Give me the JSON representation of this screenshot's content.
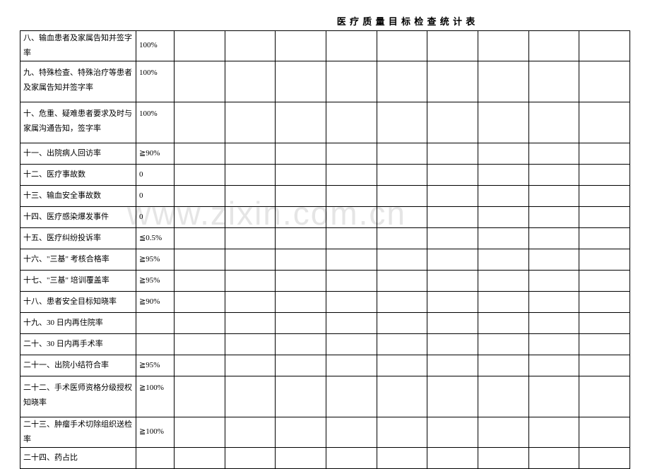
{
  "title": "医 疗 质 量 目 标 检 查 统 计 表",
  "watermark": "www.zixin.com.cn",
  "rows": [
    {
      "label": "八、输血患者及家属告知并签字率",
      "target": "100%",
      "tall": false
    },
    {
      "label": "九、特殊检查、特殊治疗等患者及家属告知并签字率",
      "target": "100%",
      "tall": true
    },
    {
      "label": "十、危重、疑难患者要求及时与家属沟通告知，签字率",
      "target": "100%",
      "tall": true
    },
    {
      "label": "十一、出院病人回访率",
      "target": "≧90%",
      "tall": false
    },
    {
      "label": "十二、医疗事故数",
      "target": "0",
      "tall": false
    },
    {
      "label": "十三、输血安全事故数",
      "target": "0",
      "tall": false
    },
    {
      "label": "十四、医疗感染爆发事件",
      "target": "0",
      "tall": false
    },
    {
      "label": "十五、医疗纠纷投诉率",
      "target": "≦0.5%",
      "tall": false
    },
    {
      "label": "十六、\"三基\" 考核合格率",
      "target": "≧95%",
      "tall": false
    },
    {
      "label": "十七、\"三基\" 培训覆盖率",
      "target": "≧95%",
      "tall": false
    },
    {
      "label": "十八、患者安全目标知晓率",
      "target": "≧90%",
      "tall": false
    },
    {
      "label": "十九、30 日内再住院率",
      "target": "",
      "tall": false
    },
    {
      "label": "二十、30 日内再手术率",
      "target": "",
      "tall": false
    },
    {
      "label": "二十一、出院小结符合率",
      "target": "≧95%",
      "tall": false
    },
    {
      "label": "二十二、手术医师资格分级授权知晓率",
      "target": "≧100%",
      "tall": true
    },
    {
      "label": "二十三、肿瘤手术切除组织送检率",
      "target": "≧100%",
      "tall": false
    },
    {
      "label": "二十四、药占比",
      "target": "",
      "tall": false
    }
  ],
  "blank_columns": 9,
  "colors": {
    "border": "#000000",
    "text": "#000000",
    "background": "#ffffff",
    "watermark": "#e5e5e5"
  },
  "typography": {
    "title_fontsize": 13,
    "cell_fontsize": 11,
    "watermark_fontsize": 46,
    "font_family": "SimSun"
  }
}
